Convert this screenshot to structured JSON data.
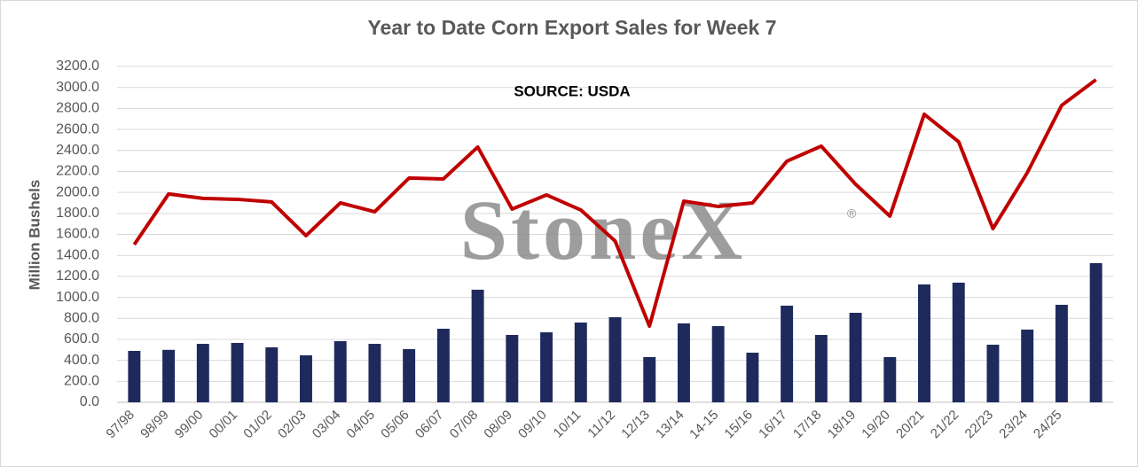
{
  "chart_data": {
    "type": "bar",
    "title": "Year to Date Corn Export Sales for Week 7",
    "annotation": "SOURCE: USDA",
    "watermark": "StoneX",
    "watermark_mark": "®",
    "ylabel": "Million Bushels",
    "categories": [
      "97/98",
      "98/99",
      "99/00",
      "00/01",
      "01/02",
      "02/03",
      "03/04",
      "04/05",
      "05/06",
      "06/07",
      "07/08",
      "08/09",
      "09/10",
      "10/11",
      "11/12",
      "12/13",
      "13/14",
      "14-15",
      "15/16",
      "16/17",
      "17/18",
      "18/19",
      "19/20",
      "20/21",
      "21/22",
      "22/23",
      "23/24",
      "24/25",
      null
    ],
    "series": [
      {
        "type": "bar",
        "color": "#1f2a5c",
        "values": [
          490,
          500,
          557,
          566,
          524,
          448,
          583,
          557,
          507,
          701,
          1073,
          642,
          667,
          760,
          811,
          431,
          752,
          726,
          473,
          921,
          642,
          853,
          431,
          1123,
          1140,
          549,
          693,
          929,
          1326
        ]
      },
      {
        "type": "line",
        "color": "#c00000",
        "values": [
          1503,
          1985,
          1943,
          1934,
          1909,
          1588,
          1900,
          1816,
          2137,
          2128,
          2432,
          1841,
          1976,
          1833,
          1537,
          726,
          1917,
          1866,
          1900,
          2297,
          2441,
          2078,
          1774,
          2745,
          2483,
          1655,
          2188,
          2829,
          3074
        ]
      }
    ],
    "ylim": [
      0,
      3200
    ],
    "yticks": [
      {
        "value": 0,
        "label": "0.0"
      },
      {
        "value": 200,
        "label": "200.0"
      },
      {
        "value": 400,
        "label": "400.0"
      },
      {
        "value": 600,
        "label": "600.0"
      },
      {
        "value": 800,
        "label": "800.0"
      },
      {
        "value": 1000,
        "label": "1000.0"
      },
      {
        "value": 1200,
        "label": "1200.0"
      },
      {
        "value": 1400,
        "label": "1400.0"
      },
      {
        "value": 1600,
        "label": "1600.0"
      },
      {
        "value": 1800,
        "label": "1800.0"
      },
      {
        "value": 2000,
        "label": "2000.0"
      },
      {
        "value": 2200,
        "label": "2200.0"
      },
      {
        "value": 2400,
        "label": "2400.0"
      },
      {
        "value": 2600,
        "label": "2600.0"
      },
      {
        "value": 2800,
        "label": "2800.0"
      },
      {
        "value": 3000,
        "label": "3000.0"
      },
      {
        "value": 3200,
        "label": "3200.0"
      }
    ],
    "grid": true
  }
}
